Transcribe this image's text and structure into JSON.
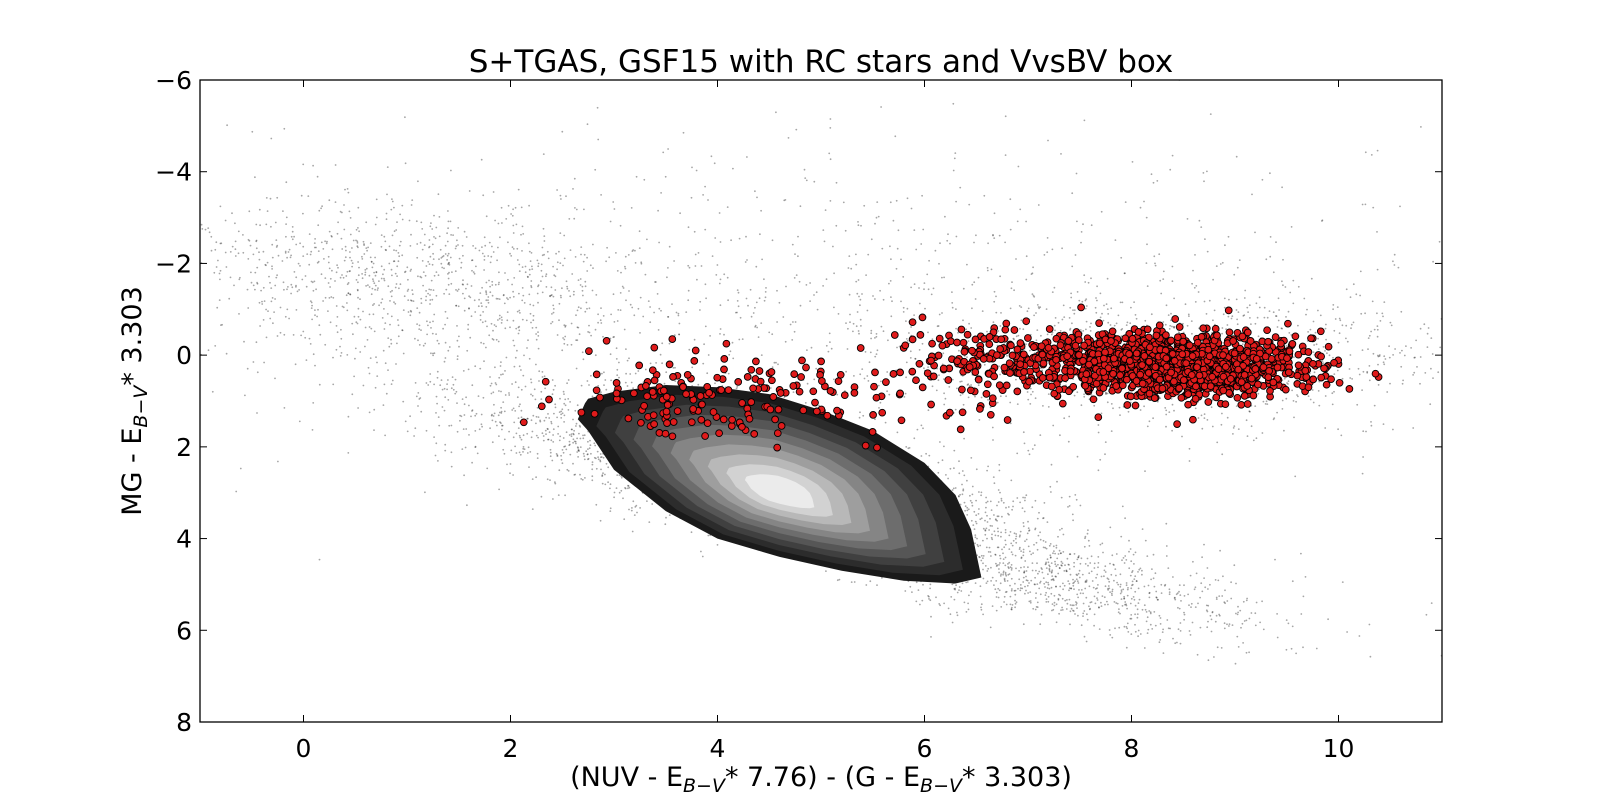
{
  "chart_data": {
    "type": "scatter",
    "title": "S+TGAS, GSF15 with RC stars and VvsBV box",
    "xlabel": {
      "parts": [
        {
          "text": "(NUV - E",
          "style": "normal"
        },
        {
          "text": "B−V",
          "style": "sub"
        },
        {
          "text": "* 7.76) - (G - E",
          "style": "normal"
        },
        {
          "text": "B−V",
          "style": "sub"
        },
        {
          "text": "* 3.303)",
          "style": "normal"
        }
      ]
    },
    "ylabel": {
      "parts": [
        {
          "text": "MG - E",
          "style": "normal"
        },
        {
          "text": "B−V",
          "style": "sub"
        },
        {
          "text": "* 3.303",
          "style": "normal"
        }
      ]
    },
    "xlim": [
      -1,
      11
    ],
    "ylim": [
      8,
      -6
    ],
    "y_inverted": true,
    "grid": false,
    "x_ticks": [
      0,
      2,
      4,
      6,
      8,
      10
    ],
    "x_tick_labels": [
      "0",
      "2",
      "4",
      "6",
      "8",
      "10"
    ],
    "y_ticks": [
      -6,
      -4,
      -2,
      0,
      2,
      4,
      6,
      8
    ],
    "y_tick_labels": [
      "−6",
      "−4",
      "−2",
      "0",
      "2",
      "4",
      "6",
      "8"
    ],
    "layers": [
      {
        "kind": "background_scatter",
        "color": "#000000",
        "marker": "dot",
        "components": [
          {
            "x_mean": 4.4,
            "y_mean": 2.6,
            "major_sd": 1.6,
            "minor_sd": 0.55,
            "slope": 0.58,
            "weight": 0.45
          },
          {
            "x_mean": 7.3,
            "y_mean": 5.0,
            "major_sd": 1.2,
            "minor_sd": 0.45,
            "slope": 0.45,
            "weight": 0.12
          },
          {
            "x_mean": 8.4,
            "y_mean": 0.0,
            "major_sd": 1.4,
            "minor_sd": 0.7,
            "slope": 0.0,
            "weight": 0.13
          },
          {
            "x_mean": 1.0,
            "y_mean": -1.6,
            "major_sd": 1.3,
            "minor_sd": 0.8,
            "slope": 0.45,
            "weight": 0.12
          },
          {
            "x_mean": 5.0,
            "y_mean": -1.0,
            "major_sd": 4.0,
            "minor_sd": 1.9,
            "slope": 0.05,
            "weight": 0.18
          }
        ]
      },
      {
        "kind": "density_contours",
        "center_x": 4.6,
        "center_y": 3.0,
        "fill_colors": [
          "#1a1a1a",
          "#2c2c2c",
          "#404040",
          "#565656",
          "#6d6d6d",
          "#858585",
          "#9e9e9e",
          "#b8b8b8",
          "#d2d2d2",
          "#ebebeb"
        ],
        "outer_boundary": [
          [
            2.75,
            0.95
          ],
          [
            3.0,
            0.8
          ],
          [
            3.5,
            0.65
          ],
          [
            4.0,
            0.7
          ],
          [
            4.5,
            0.85
          ],
          [
            5.0,
            1.2
          ],
          [
            5.5,
            1.65
          ],
          [
            6.0,
            2.35
          ],
          [
            6.3,
            3.05
          ],
          [
            6.45,
            3.8
          ],
          [
            6.55,
            4.85
          ],
          [
            6.3,
            4.98
          ],
          [
            5.8,
            4.92
          ],
          [
            5.2,
            4.7
          ],
          [
            4.6,
            4.4
          ],
          [
            4.0,
            4.0
          ],
          [
            3.5,
            3.4
          ],
          [
            3.0,
            2.5
          ],
          [
            2.75,
            1.65
          ],
          [
            2.65,
            1.4
          ],
          [
            2.72,
            1.05
          ]
        ]
      },
      {
        "kind": "rc_stars",
        "name": "RC stars",
        "color": "#e01b1b",
        "edge_color": "#000000",
        "marker": "circle",
        "components": [
          {
            "x_mean": 8.4,
            "y_mean": 0.2,
            "sd_x": 0.65,
            "sd_y": 0.32,
            "weight": 0.8
          },
          {
            "x_mean": 6.6,
            "y_mean": 0.15,
            "sd_x": 0.45,
            "sd_y": 0.45,
            "weight": 0.09
          },
          {
            "x_mean": 4.0,
            "y_mean": 1.0,
            "sd_x": 0.85,
            "sd_y": 0.5,
            "weight": 0.11
          }
        ]
      }
    ]
  }
}
